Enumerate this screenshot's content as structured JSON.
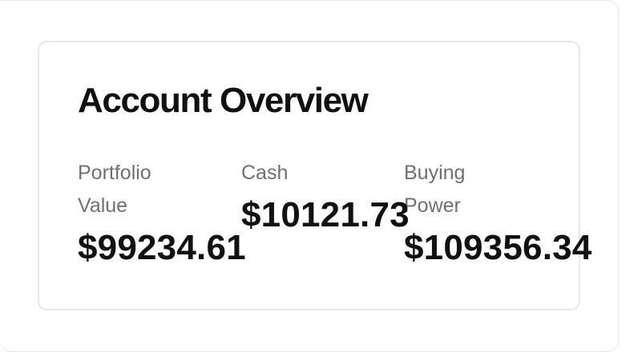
{
  "card": {
    "title": "Account Overview"
  },
  "metrics": [
    {
      "label": "Portfolio Value",
      "value": "$99234.61"
    },
    {
      "label": "Cash",
      "value": "$10121.73"
    },
    {
      "label": "Buying Power",
      "value": "$109356.34"
    }
  ]
}
